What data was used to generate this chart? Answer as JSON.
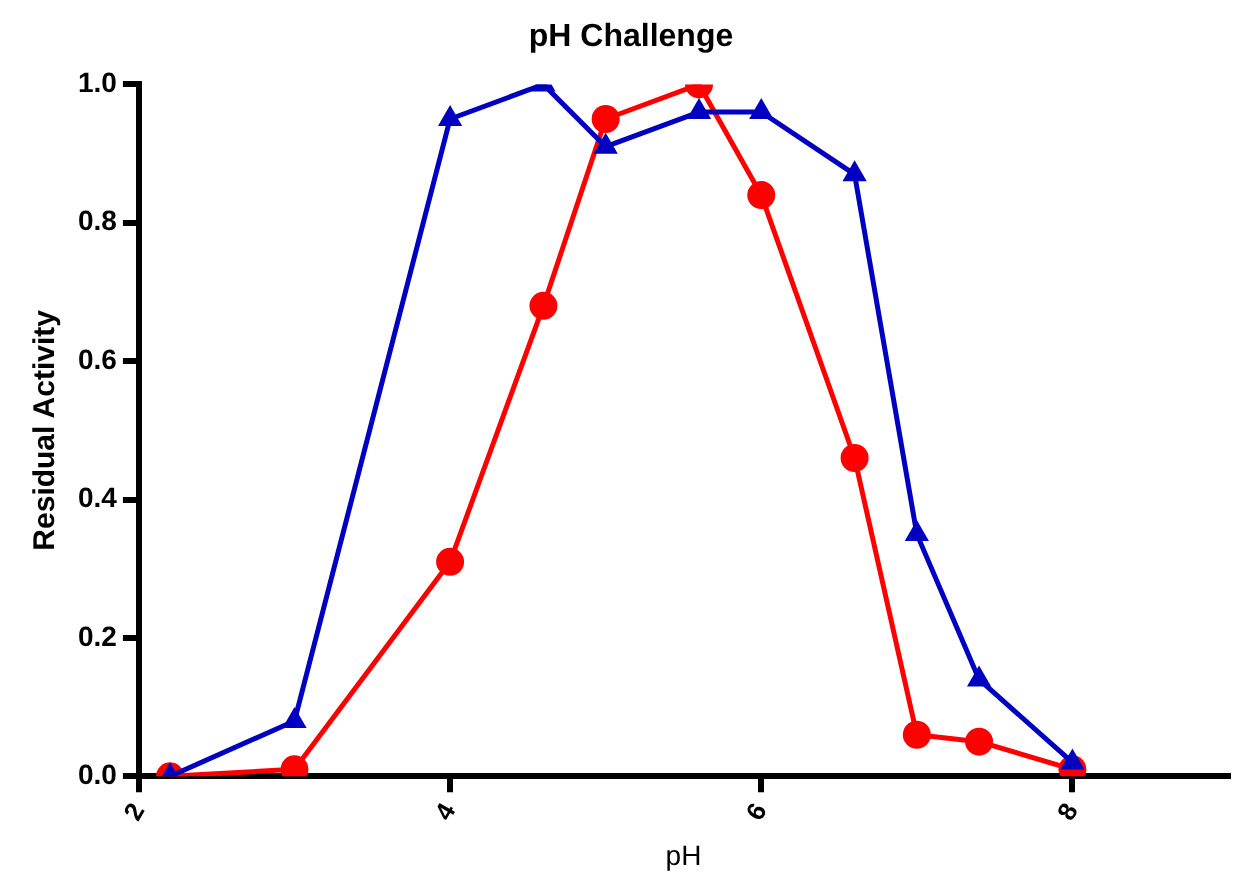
{
  "chart_data": {
    "type": "line",
    "title": "pH Challenge",
    "xlabel": "pH",
    "ylabel": "Residual Activity",
    "x": [
      2.2,
      3,
      4,
      4.6,
      5,
      5.6,
      6,
      6.6,
      7,
      7.4,
      8
    ],
    "series": [
      {
        "color": "#0000c0",
        "marker": "triangle",
        "values": [
          0,
          0.08,
          0.95,
          1.0,
          0.91,
          0.96,
          0.96,
          0.87,
          0.35,
          0.14,
          0.02
        ]
      },
      {
        "color": "#ff0000",
        "marker": "circle",
        "values": [
          0,
          0.01,
          0.31,
          0.68,
          0.95,
          1.0,
          0.84,
          0.46,
          0.06,
          0.05,
          0.01
        ]
      }
    ],
    "xlim": [
      2,
      9
    ],
    "xticks": [
      2,
      4,
      6,
      8
    ],
    "ylim": [
      0,
      1
    ],
    "yticks": [
      {
        "value": 0,
        "label": "0.0"
      },
      {
        "value": 0.2,
        "label": "0.2"
      },
      {
        "value": 0.4,
        "label": "0.4"
      },
      {
        "value": 0.6,
        "label": "0.6"
      },
      {
        "value": 0.8,
        "label": "0.8"
      },
      {
        "value": 1,
        "label": "1.0"
      }
    ],
    "grid": false,
    "legend": false,
    "line_style": "solid"
  }
}
